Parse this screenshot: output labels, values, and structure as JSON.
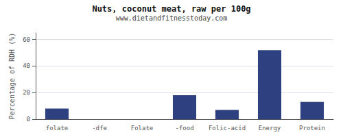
{
  "chart_data": {
    "type": "bar",
    "title": "Nuts, coconut meat, raw per 100g",
    "subtitle": "www.dietandfitnesstoday.com",
    "categories": [
      "folate",
      "-dfe",
      "Folate",
      "-food",
      "Folic-acid",
      "Energy",
      "Protein"
    ],
    "values": [
      8,
      0,
      0,
      18,
      7,
      52,
      13
    ],
    "color": "#2e4080",
    "ylabel": "Percentage of RDH (%)",
    "ylim": [
      0,
      65
    ],
    "yticks": [
      0,
      20,
      40,
      60
    ],
    "grid": true
  }
}
